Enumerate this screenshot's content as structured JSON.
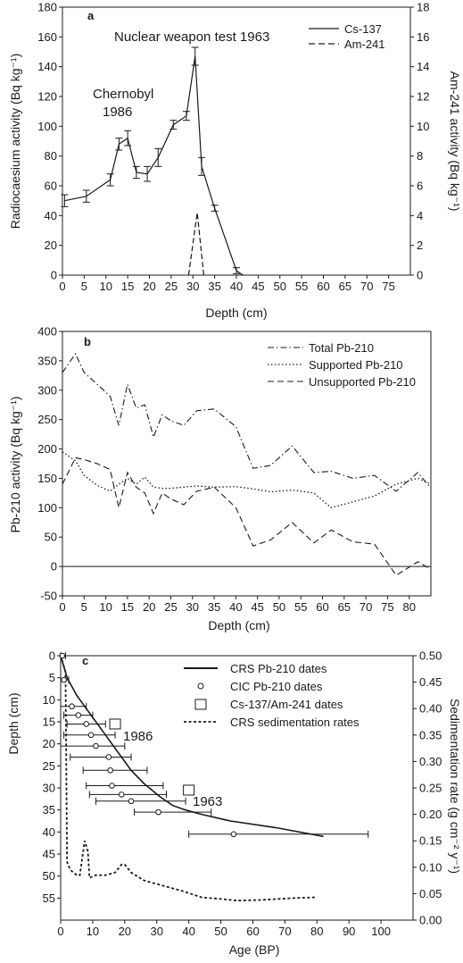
{
  "chart_data": [
    {
      "panel": "a",
      "type": "line",
      "xlabel": "Depth (cm)",
      "ylabel": "Radiocaesium activity (Bq kg⁻¹)",
      "y2label": "Am-241 activity (Bq kg⁻¹)",
      "xlim": [
        0,
        80
      ],
      "ylim": [
        0,
        180
      ],
      "y2lim": [
        0,
        18
      ],
      "xticks": [
        0,
        5,
        10,
        15,
        20,
        25,
        30,
        35,
        40,
        45,
        50,
        55,
        60,
        65,
        70,
        75
      ],
      "yticks": [
        0,
        20,
        40,
        60,
        80,
        100,
        120,
        140,
        160,
        180
      ],
      "y2ticks": [
        0,
        2,
        4,
        6,
        8,
        10,
        12,
        14,
        16,
        18
      ],
      "legend_position": "top-right",
      "annotations": [
        {
          "text": "Nuclear weapon test 1963"
        },
        {
          "text": "Chernobyl"
        },
        {
          "text": "1986"
        }
      ],
      "series": [
        {
          "name": "Cs-137",
          "style": "solid",
          "x": [
            0.5,
            5.5,
            11,
            13,
            15,
            17,
            19.5,
            22,
            25.5,
            28.5,
            30.5,
            32,
            35,
            40,
            41.5
          ],
          "y": [
            50,
            53,
            64,
            88,
            92,
            69,
            68,
            79,
            101,
            107,
            147,
            73,
            45,
            3,
            0
          ],
          "err": [
            4,
            4,
            4,
            4,
            5,
            4,
            5,
            6,
            3,
            3,
            6,
            6,
            2,
            2,
            0
          ]
        },
        {
          "name": "Am-241",
          "style": "dashed",
          "axis": "right",
          "x": [
            29,
            31,
            32.5
          ],
          "y": [
            0,
            4.2,
            0
          ]
        }
      ]
    },
    {
      "panel": "b",
      "type": "line",
      "xlabel": "Depth (cm)",
      "ylabel": "Pb-210 activity (Bq kg⁻¹)",
      "xlim": [
        0,
        85
      ],
      "ylim": [
        -50,
        400
      ],
      "xticks": [
        0,
        5,
        10,
        15,
        20,
        25,
        30,
        35,
        40,
        45,
        50,
        55,
        60,
        65,
        70,
        75,
        80
      ],
      "yticks": [
        -50,
        0,
        50,
        100,
        150,
        200,
        250,
        300,
        350,
        400
      ],
      "zero_line": true,
      "legend_position": "top-right",
      "series": [
        {
          "name": "Total Pb-210",
          "style": "dashdot",
          "x": [
            0,
            3,
            5,
            8,
            11,
            13,
            15,
            17,
            19,
            21,
            23,
            25,
            28,
            31,
            35,
            40,
            44,
            48,
            53,
            58,
            62,
            67,
            72,
            77,
            82,
            85
          ],
          "y": [
            330,
            362,
            330,
            310,
            290,
            240,
            310,
            270,
            275,
            220,
            258,
            248,
            240,
            265,
            268,
            238,
            167,
            172,
            205,
            160,
            162,
            150,
            155,
            128,
            160,
            133
          ]
        },
        {
          "name": "Supported Pb-210",
          "style": "dotted",
          "x": [
            0,
            3,
            5,
            8,
            11,
            13,
            15,
            17,
            19,
            21,
            23,
            25,
            28,
            31,
            35,
            40,
            44,
            48,
            53,
            58,
            62,
            67,
            72,
            77,
            82,
            85
          ],
          "y": [
            195,
            180,
            155,
            138,
            128,
            140,
            150,
            140,
            152,
            135,
            133,
            133,
            135,
            137,
            135,
            136,
            132,
            127,
            130,
            125,
            100,
            110,
            120,
            140,
            150,
            140
          ]
        },
        {
          "name": "Unsupported Pb-210",
          "style": "dashed",
          "x": [
            0,
            3,
            5,
            8,
            11,
            13,
            15,
            17,
            19,
            21,
            23,
            25,
            28,
            31,
            35,
            40,
            44,
            48,
            53,
            58,
            62,
            67,
            72,
            77,
            82,
            85
          ],
          "y": [
            140,
            185,
            182,
            175,
            165,
            100,
            160,
            135,
            125,
            90,
            125,
            115,
            105,
            128,
            135,
            100,
            35,
            45,
            75,
            40,
            62,
            42,
            38,
            -15,
            8,
            -5
          ]
        }
      ]
    },
    {
      "panel": "c",
      "type": "scatter",
      "xlabel": "Age (BP)",
      "ylabel": "Depth (cm)",
      "y2label": "Sedimentation rate (g cm⁻² y⁻¹)",
      "xlim": [
        0,
        110
      ],
      "ylim": [
        60,
        0
      ],
      "y2lim": [
        0,
        0.5
      ],
      "xticks": [
        0,
        10,
        20,
        30,
        40,
        50,
        60,
        70,
        80,
        90,
        100
      ],
      "yticks": [
        0,
        5,
        10,
        15,
        20,
        25,
        30,
        35,
        40,
        45,
        50,
        55
      ],
      "y2ticks": [
        0.0,
        0.05,
        0.1,
        0.15,
        0.2,
        0.25,
        0.3,
        0.35,
        0.4,
        0.45,
        0.5
      ],
      "y2tick_labels": [
        "0.00",
        "0.05",
        "0.10",
        "0.15",
        "0.20",
        "0.25",
        "0.30",
        "0.35",
        "0.40",
        "0.45",
        "0.50"
      ],
      "legend_position": "top-right",
      "annotations": [
        {
          "text": "1986"
        },
        {
          "text": "1963"
        }
      ],
      "crs_dates": {
        "name": "CRS Pb-210 dates",
        "style": "solid",
        "x": [
          0,
          2,
          5,
          8,
          11,
          14,
          17,
          19,
          22,
          26,
          31,
          35,
          39,
          44,
          53,
          67,
          82
        ],
        "y": [
          0,
          5,
          9,
          12,
          15,
          18,
          21,
          23,
          26,
          29,
          32,
          34,
          35,
          36,
          37.5,
          39,
          41
        ]
      },
      "cic_dates": {
        "name": "CIC Pb-210 dates",
        "points": [
          {
            "x": 0.5,
            "y": 0,
            "lo": 0,
            "hi": 1.5
          },
          {
            "x": 1,
            "y": 5.5,
            "lo": 0,
            "hi": 2.5
          },
          {
            "x": 3.5,
            "y": 11.5,
            "lo": 0,
            "hi": 8
          },
          {
            "x": 5.5,
            "y": 13.5,
            "lo": 1,
            "hi": 10
          },
          {
            "x": 8,
            "y": 15.5,
            "lo": 2,
            "hi": 14
          },
          {
            "x": 9.5,
            "y": 18,
            "lo": 1,
            "hi": 17
          },
          {
            "x": 11,
            "y": 20.5,
            "lo": 0,
            "hi": 20
          },
          {
            "x": 15,
            "y": 23,
            "lo": 3,
            "hi": 22
          },
          {
            "x": 15.5,
            "y": 26,
            "lo": 7,
            "hi": 27
          },
          {
            "x": 16,
            "y": 29.5,
            "lo": 8,
            "hi": 32
          },
          {
            "x": 19,
            "y": 31.5,
            "lo": 9,
            "hi": 33
          },
          {
            "x": 22,
            "y": 33,
            "lo": 11,
            "hi": 39
          },
          {
            "x": 30.5,
            "y": 35.5,
            "lo": 23,
            "hi": 47
          },
          {
            "x": 54,
            "y": 40.5,
            "lo": 40,
            "hi": 96
          }
        ]
      },
      "cs_am_dates": {
        "name": "Cs-137/Am-241 dates",
        "points": [
          {
            "x": 17,
            "y": 15.5,
            "label": "1986"
          },
          {
            "x": 40,
            "y": 30.5,
            "label": "1963"
          }
        ]
      },
      "sed_rates": {
        "name": "CRS sedimentation rates",
        "style": "dotted",
        "axis": "right",
        "x": [
          0,
          1.5,
          2,
          3,
          5,
          6,
          7.5,
          8.5,
          9,
          11,
          14,
          17,
          19,
          20,
          22,
          26,
          32,
          38,
          44,
          50,
          55,
          62,
          68,
          74,
          80
        ],
        "y": [
          0.5,
          0.47,
          0.11,
          0.095,
          0.085,
          0.085,
          0.15,
          0.13,
          0.08,
          0.085,
          0.085,
          0.09,
          0.105,
          0.105,
          0.09,
          0.075,
          0.065,
          0.055,
          0.043,
          0.04,
          0.037,
          0.038,
          0.04,
          0.042,
          0.043
        ]
      }
    }
  ]
}
